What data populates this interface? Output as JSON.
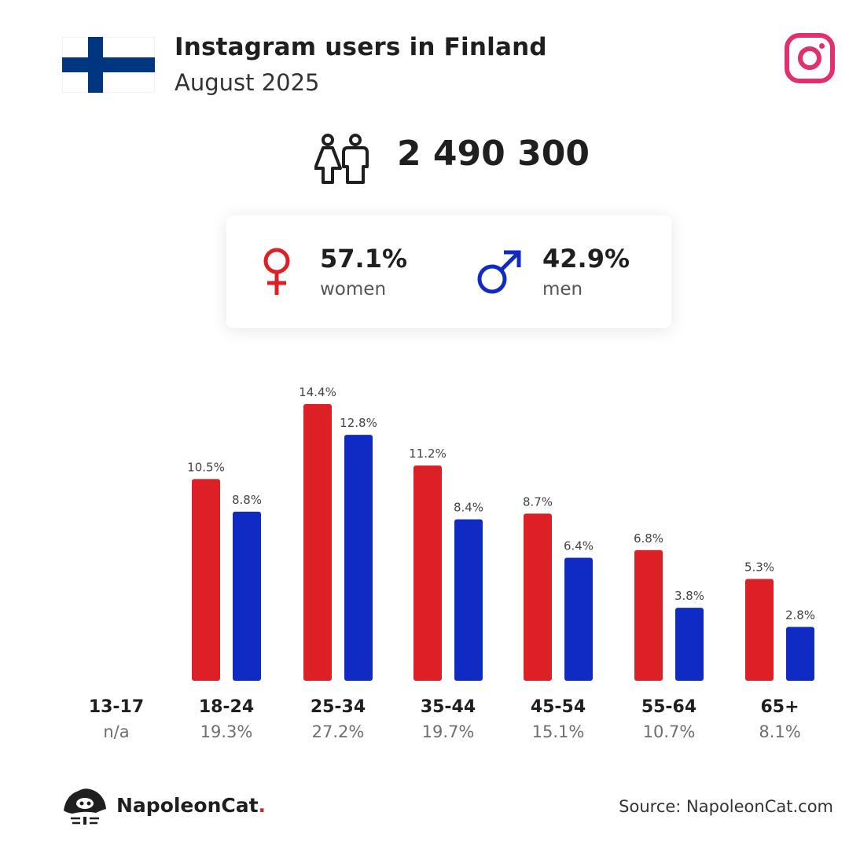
{
  "header": {
    "title": "Instagram users in Finland",
    "subtitle": "August 2025"
  },
  "total": {
    "value": "2 490 300"
  },
  "gender": {
    "women": {
      "pct": "57.1%",
      "label": "women"
    },
    "men": {
      "pct": "42.9%",
      "label": "men"
    }
  },
  "colors": {
    "women": "#dd1f26",
    "men": "#0f2bc3",
    "instagram": "#e1306c",
    "flag_blue": "#003580"
  },
  "chart_data": {
    "type": "bar",
    "categories": [
      "13-17",
      "18-24",
      "25-34",
      "35-44",
      "45-54",
      "55-64",
      "65+"
    ],
    "shares": [
      "n/a",
      "19.3%",
      "27.2%",
      "19.7%",
      "15.1%",
      "10.7%",
      "8.1%"
    ],
    "series": [
      {
        "name": "women",
        "values": [
          null,
          10.5,
          14.4,
          11.2,
          8.7,
          6.8,
          5.3
        ],
        "labels": [
          "",
          "10.5%",
          "14.4%",
          "11.2%",
          "8.7%",
          "6.8%",
          "5.3%"
        ]
      },
      {
        "name": "men",
        "values": [
          null,
          8.8,
          12.8,
          8.4,
          6.4,
          3.8,
          2.8
        ],
        "labels": [
          "",
          "8.8%",
          "12.8%",
          "8.4%",
          "6.4%",
          "3.8%",
          "2.8%"
        ]
      }
    ],
    "ylim": [
      0,
      14.4
    ]
  },
  "footer": {
    "brand": "NapoleonCat",
    "brand_dot": ".",
    "source": "Source: NapoleonCat.com"
  }
}
